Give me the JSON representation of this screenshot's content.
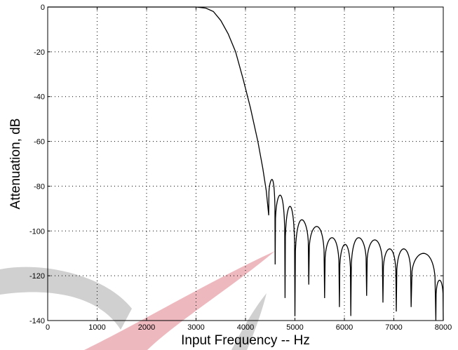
{
  "chart_data": {
    "type": "line",
    "title": "",
    "xlabel": "Input Frequency -- Hz",
    "ylabel": "Attenuation, dB",
    "xlim": [
      0,
      8000
    ],
    "ylim": [
      -140,
      0
    ],
    "xticks": [
      0,
      1000,
      2000,
      3000,
      4000,
      5000,
      6000,
      7000,
      8000
    ],
    "yticks": [
      0,
      -20,
      -40,
      -60,
      -80,
      -100,
      -120,
      -140
    ],
    "grid": true,
    "legend": "none",
    "line_color": "#000000",
    "watermark_colors": [
      "#c8c8c8",
      "#e8a0aa"
    ],
    "series": [
      {
        "passband": [
          [
            0,
            0
          ],
          [
            1000,
            0
          ],
          [
            2000,
            0
          ],
          [
            3000,
            0
          ],
          [
            3200,
            -0.5
          ],
          [
            3350,
            -2
          ],
          [
            3500,
            -6
          ],
          [
            3650,
            -12
          ],
          [
            3800,
            -20
          ],
          [
            3950,
            -32
          ],
          [
            4100,
            -45
          ],
          [
            4250,
            -60
          ],
          [
            4350,
            -72
          ],
          [
            4420,
            -82
          ],
          [
            4470,
            -93
          ]
        ],
        "lobes": [
          [
            4470,
            4600,
            -77,
            -93,
            -115
          ],
          [
            4600,
            4800,
            -84,
            -115,
            -130
          ],
          [
            4800,
            5000,
            -89,
            -130,
            -138
          ],
          [
            5000,
            5280,
            -95,
            -138,
            -124
          ],
          [
            5280,
            5600,
            -98,
            -124,
            -130
          ],
          [
            5600,
            5900,
            -103,
            -130,
            -134
          ],
          [
            5900,
            6130,
            -106,
            -134,
            -138
          ],
          [
            6130,
            6450,
            -103,
            -138,
            -129
          ],
          [
            6450,
            6780,
            -104,
            -129,
            -132
          ],
          [
            6780,
            7050,
            -108,
            -132,
            -136
          ],
          [
            7050,
            7350,
            -108,
            -136,
            -134
          ],
          [
            7350,
            7850,
            -110,
            -134,
            -141
          ],
          [
            7850,
            8000,
            -122,
            -141,
            -140
          ]
        ]
      }
    ]
  }
}
